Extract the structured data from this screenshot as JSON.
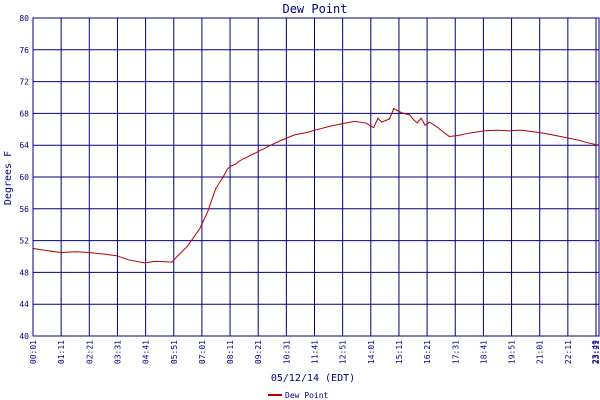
{
  "chart_data": {
    "type": "line",
    "title": "Dew Point",
    "xlabel": "05/12/14 (EDT)",
    "ylabel": "Degrees F",
    "ylim": [
      40,
      80
    ],
    "grid": true,
    "legend_position": "bottom-center",
    "y_ticks": [
      "40",
      "44",
      "48",
      "52",
      "56",
      "60",
      "64",
      "68",
      "72",
      "76",
      "80"
    ],
    "x_ticks": [
      "00:01",
      "01:11",
      "02:21",
      "03:31",
      "04:41",
      "05:51",
      "07:01",
      "08:11",
      "09:21",
      "10:31",
      "11:41",
      "12:51",
      "14:01",
      "15:11",
      "16:21",
      "17:31",
      "18:41",
      "19:51",
      "21:01",
      "22:11",
      "23:21",
      "23:49"
    ],
    "series": [
      {
        "name": "Dew Point",
        "color": "#b00000",
        "x_minutes": [
          1,
          40,
          71,
          110,
          141,
          180,
          211,
          240,
          281,
          310,
          351,
          360,
          390,
          421,
          440,
          461,
          480,
          491,
          500,
          511,
          521,
          531,
          541,
          551,
          561,
          571,
          581,
          600,
          631,
          660,
          691,
          720,
          751,
          780,
          811,
          840,
          860,
          871,
          880,
          900,
          911,
          930,
          951,
          961,
          970,
          980,
          990,
          1001,
          1020,
          1040,
          1051,
          1071,
          1081,
          1090,
          1111,
          1140,
          1171,
          1201,
          1231,
          1261,
          1290,
          1321,
          1351,
          1380,
          1401,
          1429
        ],
        "values": [
          51,
          50.7,
          50.5,
          50.6,
          50.5,
          50.3,
          50.1,
          49.6,
          49.2,
          49.4,
          49.3,
          49.8,
          51.3,
          53.5,
          55.5,
          58.5,
          60,
          61,
          61.4,
          61.6,
          62,
          62.3,
          62.5,
          62.8,
          63.0,
          63.3,
          63.5,
          64,
          64.7,
          65.3,
          65.6,
          66,
          66.4,
          66.7,
          67,
          66.8,
          66.2,
          67.4,
          66.9,
          67.3,
          68.6,
          68.1,
          67.8,
          67.2,
          66.8,
          67.4,
          66.5,
          66.9,
          66.3,
          65.5,
          65.1,
          65.2,
          65.3,
          65.4,
          65.6,
          65.8,
          65.9,
          65.8,
          65.9,
          65.7,
          65.5,
          65.2,
          64.9,
          64.6,
          64.3,
          64.0
        ]
      }
    ]
  }
}
